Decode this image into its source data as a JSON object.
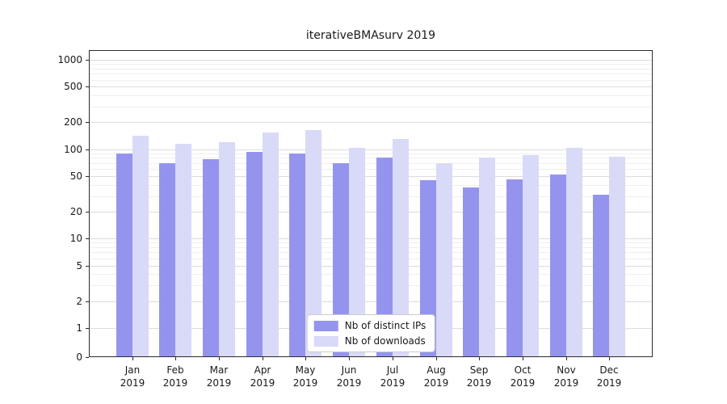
{
  "title": "iterativeBMAsurv 2019",
  "chart_data": {
    "type": "bar",
    "title": "iterativeBMAsurv 2019",
    "categories": [
      "Jan",
      "Feb",
      "Mar",
      "Apr",
      "May",
      "Jun",
      "Jul",
      "Aug",
      "Sep",
      "Oct",
      "Nov",
      "Dec"
    ],
    "year": "2019",
    "series": [
      {
        "name": "Nb of distinct IPs",
        "color": "#9494ee",
        "values": [
          90,
          70,
          78,
          93,
          90,
          70,
          80,
          45,
          37,
          46,
          52,
          31
        ]
      },
      {
        "name": "Nb of downloads",
        "color": "#d9d9f8",
        "values": [
          140,
          115,
          120,
          155,
          165,
          103,
          130,
          70,
          80,
          85,
          103,
          82
        ]
      }
    ],
    "yscale": "log",
    "y_ticks": [
      0,
      1,
      2,
      5,
      10,
      20,
      50,
      100,
      200,
      500,
      1000
    ],
    "y_minor_ticks": [
      3,
      4,
      6,
      7,
      8,
      9,
      30,
      40,
      60,
      70,
      80,
      90,
      300,
      400,
      600,
      700,
      800,
      900
    ],
    "ylim": [
      0,
      1300
    ],
    "grid": true,
    "legend_position": "lower center",
    "legend_entries": [
      "Nb of distinct IPs",
      "Nb of downloads"
    ]
  },
  "colors": {
    "bar_dark": "#9494ee",
    "bar_light": "#d9d9f8",
    "grid_major": "#dcdcdc",
    "grid_minor": "#efefef",
    "axis": "#2b2b2b",
    "text": "#1a1a1a",
    "legend_border": "#cccccc",
    "legend_bg": "#ffffff"
  }
}
